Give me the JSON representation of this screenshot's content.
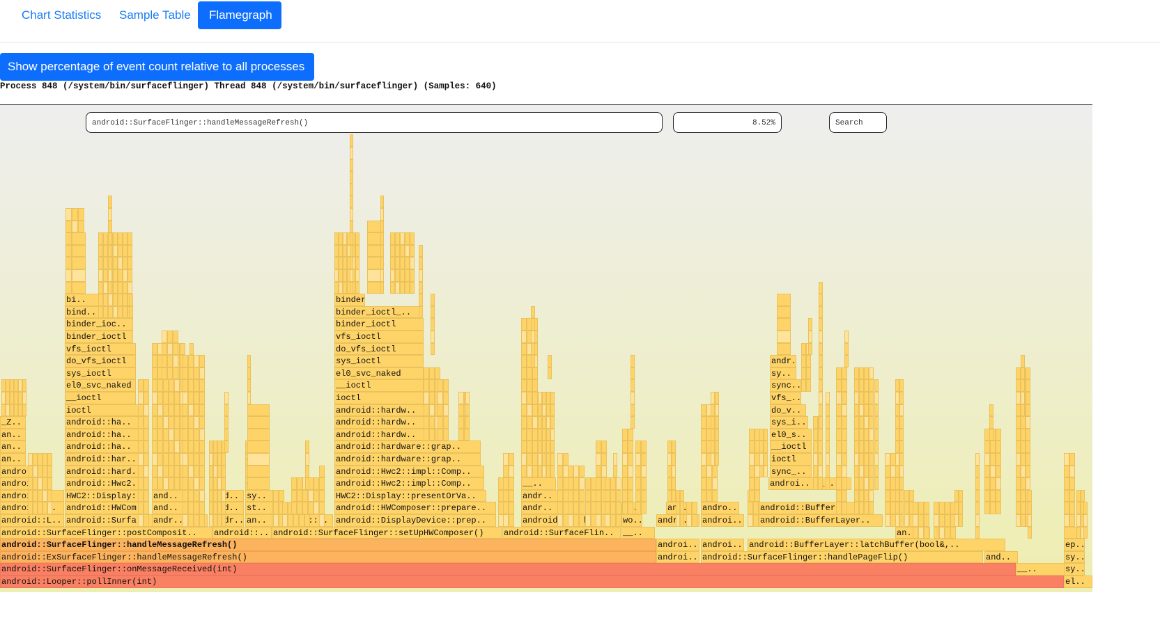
{
  "tabs": [
    {
      "label": "Chart Statistics",
      "active": false
    },
    {
      "label": "Sample Table",
      "active": false
    },
    {
      "label": "Flamegraph",
      "active": true
    }
  ],
  "dropdown": {
    "label": "Show percentage of event count relative to all processes"
  },
  "process_info": "Process 848 (/system/bin/surfaceflinger) Thread 848 (/system/bin/surfaceflinger) (Samples: 640)",
  "flamegraph": {
    "selected_function": "android::SurfaceFlinger::handleMessageRefresh()",
    "selected_percent": "8.52%",
    "search_label": "Search",
    "colors": {
      "frame": "#fed469",
      "frame_border": "#e9c25d",
      "hot": "#fbb35e",
      "root": "#f98062"
    },
    "frames": [
      {
        "label": "android::Looper::pollInner(int)",
        "tone": "lo"
      },
      {
        "label": "android::SurfaceFlinger::onMessageReceived(int)",
        "tone": "lo"
      },
      {
        "label": "android::ExSurfaceFlinger::handleMessageRefresh()",
        "tone": "hi"
      },
      {
        "label": "android::SurfaceFlinger::handleMessageRefresh()",
        "tone": "hi",
        "bold": true
      },
      {
        "label": "android::SurfaceFlinger::postComposit.."
      },
      {
        "label": "android::L.."
      },
      {
        "label": "android::.."
      },
      {
        "label": "android:.."
      },
      {
        "label": "android.."
      },
      {
        "label": "andro.."
      },
      {
        "label": "an.."
      },
      {
        "label": "an.."
      },
      {
        "label": "an.."
      },
      {
        "label": "_Z.."
      },
      {
        "label": "android::Surfa.."
      },
      {
        "label": "android::HWCom.."
      },
      {
        "label": "HWC2::Display:.."
      },
      {
        "label": "android::Hwc2.."
      },
      {
        "label": "android::hard.."
      },
      {
        "label": "android::har.."
      },
      {
        "label": "android::ha.."
      },
      {
        "label": "android::ha.."
      },
      {
        "label": "android::ha.."
      },
      {
        "label": "ioctl"
      },
      {
        "label": "__ioctl"
      },
      {
        "label": "el0_svc_naked"
      },
      {
        "label": "sys_ioctl"
      },
      {
        "label": "do_vfs_ioctl"
      },
      {
        "label": "vfs_ioctl"
      },
      {
        "label": "binder_ioctl"
      },
      {
        "label": "binder_ioc.."
      },
      {
        "label": "bind.."
      },
      {
        "label": "bi.."
      },
      {
        "label": "andr.."
      },
      {
        "label": "and.."
      },
      {
        "label": "and.."
      },
      {
        "label": "android::.."
      },
      {
        "label": "andr.."
      },
      {
        "label": "and.."
      },
      {
        "label": "and.."
      },
      {
        "label": "an.."
      },
      {
        "label": "st.."
      },
      {
        "label": "sy.."
      },
      {
        "label": "el.."
      },
      {
        "label": "sy.."
      },
      {
        "label": "do.."
      },
      {
        "label": "fu.."
      },
      {
        "label": "android::SurfaceFlinger::setUpHWComposer()"
      },
      {
        "label": "android::.."
      },
      {
        "label": "android::DisplayDevice::prep.."
      },
      {
        "label": "android::HWComposer::prepare.."
      },
      {
        "label": "HWC2::Display::presentOrVa.."
      },
      {
        "label": "android::Hwc2::impl::Comp.."
      },
      {
        "label": "android::Hwc2::impl::Comp.."
      },
      {
        "label": "android::hardware::grap.."
      },
      {
        "label": "android::hardware::grap.."
      },
      {
        "label": "android::hardw.."
      },
      {
        "label": "android::hardw.."
      },
      {
        "label": "android::hardw.."
      },
      {
        "label": "ioctl"
      },
      {
        "label": "__ioctl"
      },
      {
        "label": "el0_svc_naked"
      },
      {
        "label": "sys_ioctl"
      },
      {
        "label": "do_vfs_ioctl"
      },
      {
        "label": "vfs_ioctl"
      },
      {
        "label": "binder_ioctl"
      },
      {
        "label": "binder_ioctl_.."
      },
      {
        "label": "binder_tr.."
      },
      {
        "label": "android::SurfaceFlin.."
      },
      {
        "label": "android::Surf.."
      },
      {
        "label": "andr.."
      },
      {
        "label": "andr.."
      },
      {
        "label": "__.."
      },
      {
        "label": "__.."
      },
      {
        "label": "wo.."
      },
      {
        "label": "do.."
      },
      {
        "label": "androi.."
      },
      {
        "label": "androi.."
      },
      {
        "label": "andro.."
      },
      {
        "label": "an.."
      },
      {
        "label": "android::SurfaceFlinger::handlePageFlip()"
      },
      {
        "label": "androi.."
      },
      {
        "label": "androi.."
      },
      {
        "label": "andro.."
      },
      {
        "label": "android::BufferLayer::latchBuffer(bool&,.."
      },
      {
        "label": "android::BufferLayer.."
      },
      {
        "label": "android::Buffer.."
      },
      {
        "label": "androi.."
      },
      {
        "label": "sync_.."
      },
      {
        "label": "ioctl"
      },
      {
        "label": "__ioctl"
      },
      {
        "label": "el0_s.."
      },
      {
        "label": "sys_i.."
      },
      {
        "label": "do_v.."
      },
      {
        "label": "vfs_.."
      },
      {
        "label": "sync.."
      },
      {
        "label": "sy.."
      },
      {
        "label": "andr.."
      },
      {
        "label": "__.."
      },
      {
        "label": "__.."
      },
      {
        "label": "an.."
      },
      {
        "label": "and.."
      },
      {
        "label": "__.."
      },
      {
        "label": "el.."
      },
      {
        "label": "sy.."
      },
      {
        "label": "sy.."
      },
      {
        "label": "ep.."
      }
    ]
  }
}
